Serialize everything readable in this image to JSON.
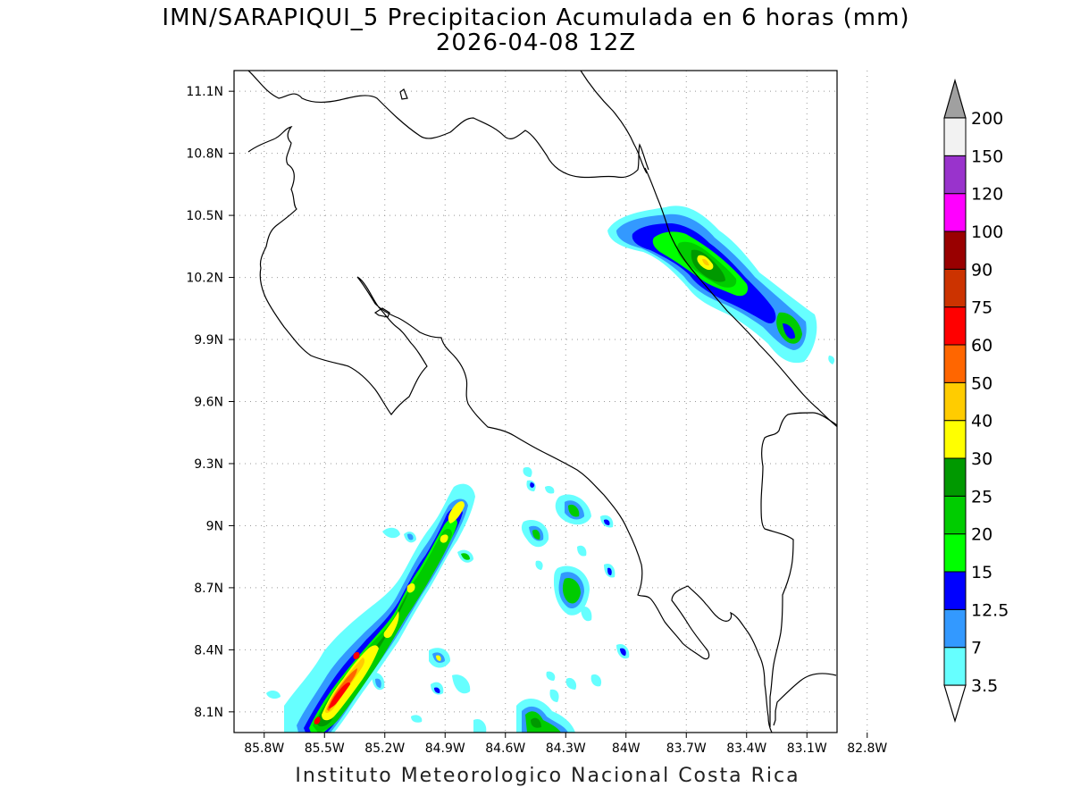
{
  "title": "IMN/SARAPIQUI_5 Precipitacion Acumulada en 6 horas (mm)",
  "subtitle": "2026-04-08 12Z",
  "footer": "Instituto Meteorologico Nacional Costa Rica",
  "map": {
    "lat_range": [
      8.0,
      11.2
    ],
    "lon_range": [
      -85.95,
      -82.95
    ],
    "lat_ticks": [
      {
        "value": 8.1,
        "label": "8.1N"
      },
      {
        "value": 8.4,
        "label": "8.4N"
      },
      {
        "value": 8.7,
        "label": "8.7N"
      },
      {
        "value": 9.0,
        "label": "9N"
      },
      {
        "value": 9.3,
        "label": "9.3N"
      },
      {
        "value": 9.6,
        "label": "9.6N"
      },
      {
        "value": 9.9,
        "label": "9.9N"
      },
      {
        "value": 10.2,
        "label": "10.2N"
      },
      {
        "value": 10.5,
        "label": "10.5N"
      },
      {
        "value": 10.8,
        "label": "10.8N"
      },
      {
        "value": 11.1,
        "label": "11.1N"
      }
    ],
    "lon_ticks": [
      {
        "value": -85.8,
        "label": "85.8W"
      },
      {
        "value": -85.5,
        "label": "85.5W"
      },
      {
        "value": -85.2,
        "label": "85.2W"
      },
      {
        "value": -84.9,
        "label": "84.9W"
      },
      {
        "value": -84.6,
        "label": "84.6W"
      },
      {
        "value": -84.3,
        "label": "84.3W"
      },
      {
        "value": -84.0,
        "label": "84W"
      },
      {
        "value": -83.7,
        "label": "83.7W"
      },
      {
        "value": -83.4,
        "label": "83.4W"
      },
      {
        "value": -83.1,
        "label": "83.1W"
      },
      {
        "value": -82.8,
        "label": "82.8W"
      }
    ],
    "grid": true
  },
  "colorbar": {
    "levels": [
      "3.5",
      "7",
      "12.5",
      "15",
      "20",
      "25",
      "30",
      "40",
      "50",
      "60",
      "75",
      "90",
      "100",
      "120",
      "150",
      "200"
    ],
    "colors": [
      "#66ffff",
      "#3399ff",
      "#0000ff",
      "#00ff00",
      "#00cc00",
      "#009900",
      "#ffff00",
      "#ffcc00",
      "#ff6600",
      "#ff0000",
      "#cc3300",
      "#990000",
      "#ff00ff",
      "#9933cc",
      "#f2f2f2"
    ],
    "over_color": "#a0a0a0",
    "under_color": "#ffffff"
  }
}
